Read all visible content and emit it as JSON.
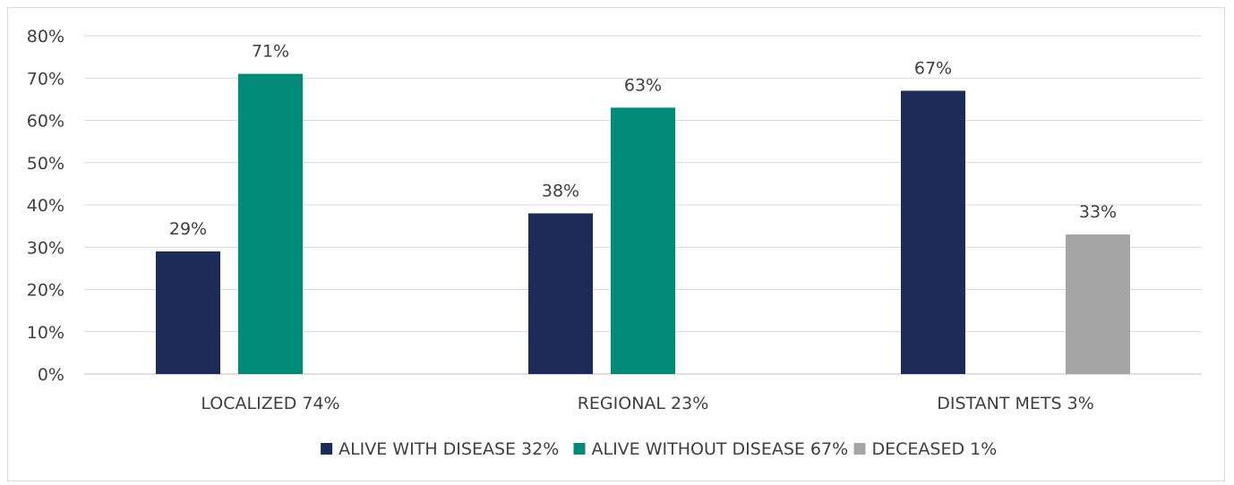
{
  "chart_data": {
    "type": "bar",
    "categories": [
      "LOCALIZED 74%",
      "REGIONAL 23%",
      "DISTANT METS 3%"
    ],
    "series": [
      {
        "name": "ALIVE WITH DISEASE 32%",
        "color": "#1c2b57",
        "values": [
          29,
          38,
          67
        ],
        "labels": [
          "29%",
          "38%",
          "67%"
        ]
      },
      {
        "name": "ALIVE WITHOUT DISEASE 67%",
        "color": "#008a78",
        "values": [
          71,
          63,
          0
        ],
        "labels": [
          "71%",
          "63%",
          ""
        ]
      },
      {
        "name": "DECEASED  1%",
        "color": "#a5a5a5",
        "values": [
          0,
          0,
          33
        ],
        "labels": [
          "",
          "",
          "33%"
        ]
      }
    ],
    "y_ticks": [
      "0%",
      "10%",
      "20%",
      "30%",
      "40%",
      "50%",
      "60%",
      "70%",
      "80%"
    ],
    "ylim": [
      0,
      80
    ],
    "grid": true,
    "legend_position": "bottom",
    "title": "",
    "xlabel": "",
    "ylabel": ""
  }
}
